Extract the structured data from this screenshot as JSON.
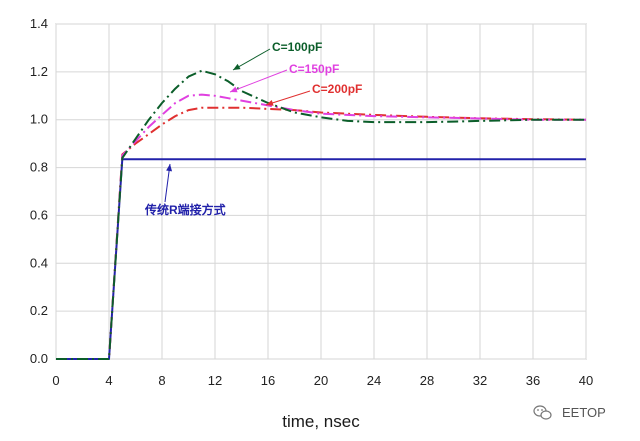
{
  "chart_data": {
    "type": "line",
    "title": "",
    "xlabel": "time, nsec",
    "ylabel": "",
    "xlim": [
      0,
      40
    ],
    "ylim": [
      0,
      1.4
    ],
    "grid": true,
    "x_ticks": [
      "0",
      "4",
      "8",
      "12",
      "16",
      "20",
      "24",
      "28",
      "32",
      "36",
      "40"
    ],
    "y_ticks": [
      "0.0",
      "0.2",
      "0.4",
      "0.6",
      "0.8",
      "1.0",
      "1.2",
      "1.4"
    ],
    "series": [
      {
        "name": "传统R端接方式",
        "color": "#2222aa",
        "dash": "solid",
        "points": [
          [
            0,
            0
          ],
          [
            4,
            0
          ],
          [
            5,
            0.835
          ],
          [
            40,
            0.835
          ]
        ]
      },
      {
        "name": "C=100pF",
        "color": "#0b5e2a",
        "dash": "dashdot",
        "points": [
          [
            0,
            0
          ],
          [
            4,
            0
          ],
          [
            5,
            0.84
          ],
          [
            6,
            0.92
          ],
          [
            7,
            1.0
          ],
          [
            8,
            1.07
          ],
          [
            9,
            1.13
          ],
          [
            10,
            1.18
          ],
          [
            11,
            1.205
          ],
          [
            12,
            1.19
          ],
          [
            13,
            1.16
          ],
          [
            14,
            1.12
          ],
          [
            16,
            1.07
          ],
          [
            18,
            1.03
          ],
          [
            20,
            1.01
          ],
          [
            22,
            0.995
          ],
          [
            24,
            0.99
          ],
          [
            26,
            0.99
          ],
          [
            28,
            0.99
          ],
          [
            30,
            0.992
          ],
          [
            32,
            0.995
          ],
          [
            36,
            1.0
          ],
          [
            40,
            1.0
          ]
        ]
      },
      {
        "name": "C=150pF",
        "color": "#e040e0",
        "dash": "dashdot",
        "points": [
          [
            0,
            0
          ],
          [
            4,
            0
          ],
          [
            5,
            0.85
          ],
          [
            6,
            0.91
          ],
          [
            7,
            0.97
          ],
          [
            8,
            1.02
          ],
          [
            9,
            1.07
          ],
          [
            10,
            1.1
          ],
          [
            11,
            1.105
          ],
          [
            12,
            1.1
          ],
          [
            13,
            1.09
          ],
          [
            14,
            1.08
          ],
          [
            16,
            1.06
          ],
          [
            18,
            1.04
          ],
          [
            20,
            1.025
          ],
          [
            24,
            1.015
          ],
          [
            28,
            1.01
          ],
          [
            32,
            1.005
          ],
          [
            36,
            1.0
          ],
          [
            40,
            1.0
          ]
        ]
      },
      {
        "name": "C=200pF",
        "color": "#e03030",
        "dash": "dashdot",
        "points": [
          [
            0,
            0
          ],
          [
            4,
            0
          ],
          [
            5,
            0.855
          ],
          [
            6,
            0.9
          ],
          [
            7,
            0.94
          ],
          [
            8,
            0.98
          ],
          [
            9,
            1.015
          ],
          [
            10,
            1.04
          ],
          [
            11,
            1.05
          ],
          [
            12,
            1.05
          ],
          [
            14,
            1.05
          ],
          [
            16,
            1.045
          ],
          [
            18,
            1.04
          ],
          [
            20,
            1.03
          ],
          [
            24,
            1.02
          ],
          [
            28,
            1.012
          ],
          [
            32,
            1.006
          ],
          [
            36,
            1.002
          ],
          [
            40,
            1.0
          ]
        ]
      }
    ],
    "annotations": [
      {
        "text": "C=100pF",
        "color": "#0b5e2a"
      },
      {
        "text": "C=150pF",
        "color": "#e040e0"
      },
      {
        "text": "C=200pF",
        "color": "#e03030"
      },
      {
        "text": "传统R端接方式",
        "color": "#2222aa"
      }
    ]
  },
  "watermark": {
    "icon": "wechat-icon",
    "text": "EETOP"
  }
}
